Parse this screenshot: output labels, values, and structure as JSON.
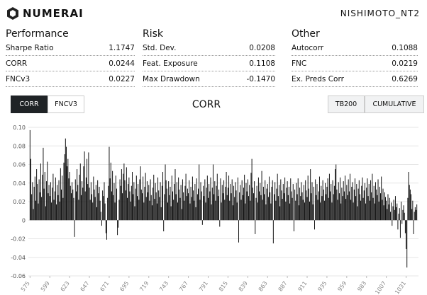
{
  "header": {
    "brand": "NUMERAI",
    "model": "NISHIMOTO_NT2"
  },
  "sections": [
    {
      "title": "Performance",
      "rows": [
        [
          "Sharpe Ratio",
          "1.1747"
        ],
        [
          "CORR",
          "0.0244"
        ],
        [
          "FNCv3",
          "0.0227"
        ]
      ]
    },
    {
      "title": "Risk",
      "rows": [
        [
          "Std. Dev.",
          "0.0208"
        ],
        [
          "Feat. Exposure",
          "0.1108"
        ],
        [
          "Max Drawdown",
          "-0.1470"
        ]
      ]
    },
    {
      "title": "Other",
      "rows": [
        [
          "Autocorr",
          "0.1088"
        ],
        [
          "FNC",
          "0.0219"
        ],
        [
          "Ex. Preds Corr",
          "0.6269"
        ]
      ]
    }
  ],
  "controls": {
    "left": [
      "CORR",
      "FNCV3"
    ],
    "right": [
      "TB200",
      "CUMULATIVE"
    ]
  },
  "chart_data": {
    "type": "bar",
    "title": "CORR",
    "color": "#111111",
    "grid": true,
    "xlim": [
      573,
      1046
    ],
    "ylim": [
      -0.06,
      0.1
    ],
    "yticks": [
      -0.06,
      -0.04,
      -0.02,
      0,
      0.02,
      0.04,
      0.06,
      0.08,
      {
        "value": 0.1,
        "label": "0.10"
      }
    ],
    "xticks": [
      575,
      599,
      623,
      647,
      671,
      695,
      719,
      743,
      767,
      791,
      815,
      839,
      863,
      887,
      911,
      935,
      959,
      983,
      1007,
      1031
    ],
    "x": [
      575,
      576,
      577,
      578,
      579,
      580,
      581,
      582,
      583,
      584,
      585,
      586,
      587,
      588,
      589,
      590,
      591,
      592,
      593,
      594,
      595,
      596,
      597,
      598,
      599,
      600,
      601,
      602,
      603,
      604,
      605,
      606,
      607,
      608,
      609,
      610,
      611,
      612,
      613,
      614,
      615,
      616,
      617,
      618,
      619,
      620,
      621,
      622,
      623,
      624,
      625,
      626,
      627,
      628,
      629,
      630,
      631,
      632,
      633,
      634,
      635,
      636,
      637,
      638,
      639,
      640,
      641,
      642,
      643,
      644,
      645,
      646,
      647,
      648,
      649,
      650,
      651,
      652,
      653,
      654,
      655,
      656,
      657,
      658,
      659,
      660,
      661,
      662,
      663,
      664,
      665,
      666,
      667,
      668,
      669,
      670,
      671,
      672,
      673,
      674,
      675,
      676,
      677,
      678,
      679,
      680,
      681,
      682,
      683,
      684,
      685,
      686,
      687,
      688,
      689,
      690,
      691,
      692,
      693,
      694,
      695,
      696,
      697,
      698,
      699,
      700,
      701,
      702,
      703,
      704,
      705,
      706,
      707,
      708,
      709,
      710,
      711,
      712,
      713,
      714,
      715,
      716,
      717,
      718,
      719,
      720,
      721,
      722,
      723,
      724,
      725,
      726,
      727,
      728,
      729,
      730,
      731,
      732,
      733,
      734,
      735,
      736,
      737,
      738,
      739,
      740,
      741,
      742,
      743,
      744,
      745,
      746,
      747,
      748,
      749,
      750,
      751,
      752,
      753,
      754,
      755,
      756,
      757,
      758,
      759,
      760,
      761,
      762,
      763,
      764,
      765,
      766,
      767,
      768,
      769,
      770,
      771,
      772,
      773,
      774,
      775,
      776,
      777,
      778,
      779,
      780,
      781,
      782,
      783,
      784,
      785,
      786,
      787,
      788,
      789,
      790,
      791,
      792,
      793,
      794,
      795,
      796,
      797,
      798,
      799,
      800,
      801,
      802,
      803,
      804,
      805,
      806,
      807,
      808,
      809,
      810,
      811,
      812,
      813,
      814,
      815,
      816,
      817,
      818,
      819,
      820,
      821,
      822,
      823,
      824,
      825,
      826,
      827,
      828,
      829,
      830,
      831,
      832,
      833,
      834,
      835,
      836,
      837,
      838,
      839,
      840,
      841,
      842,
      843,
      844,
      845,
      846,
      847,
      848,
      849,
      850,
      851,
      852,
      853,
      854,
      855,
      856,
      857,
      858,
      859,
      860,
      861,
      862,
      863,
      864,
      865,
      866,
      867,
      868,
      869,
      870,
      871,
      872,
      873,
      874,
      875,
      876,
      877,
      878,
      879,
      880,
      881,
      882,
      883,
      884,
      885,
      886,
      887,
      888,
      889,
      890,
      891,
      892,
      893,
      894,
      895,
      896,
      897,
      898,
      899,
      900,
      901,
      902,
      903,
      904,
      905,
      906,
      907,
      908,
      909,
      910,
      911,
      912,
      913,
      914,
      915,
      916,
      917,
      918,
      919,
      920,
      921,
      922,
      923,
      924,
      925,
      926,
      927,
      928,
      929,
      930,
      931,
      932,
      933,
      934,
      935,
      936,
      937,
      938,
      939,
      940,
      941,
      942,
      943,
      944,
      945,
      946,
      947,
      948,
      949,
      950,
      951,
      952,
      953,
      954,
      955,
      956,
      957,
      958,
      959,
      960,
      961,
      962,
      963,
      964,
      965,
      966,
      967,
      968,
      969,
      970,
      971,
      972,
      973,
      974,
      975,
      976,
      977,
      978,
      979,
      980,
      981,
      982,
      983,
      984,
      985,
      986,
      987,
      988,
      989,
      990,
      991,
      992,
      993,
      994,
      995,
      996,
      997,
      998,
      999,
      1000,
      1001,
      1002,
      1003,
      1004,
      1005,
      1006,
      1007,
      1008,
      1009,
      1010,
      1011,
      1012,
      1013,
      1014,
      1015,
      1016,
      1017,
      1018,
      1019,
      1020,
      1021,
      1022,
      1023,
      1024,
      1025,
      1026,
      1027,
      1028,
      1029,
      1030,
      1031,
      1032,
      1033,
      1034,
      1035,
      1036,
      1037,
      1038,
      1039,
      1040,
      1041,
      1042,
      1043,
      1044
    ],
    "values": [
      0.097,
      0.066,
      0.028,
      0.041,
      0.012,
      0.036,
      0.047,
      0.021,
      0.055,
      0.039,
      0.018,
      0.044,
      0.03,
      0.061,
      0.025,
      0.049,
      0.078,
      0.034,
      0.052,
      0.015,
      0.042,
      0.063,
      0.029,
      0.038,
      0.026,
      0.041,
      0.019,
      0.035,
      0.05,
      0.022,
      0.031,
      0.046,
      0.017,
      0.038,
      0.027,
      0.043,
      0.02,
      0.056,
      0.033,
      0.048,
      0.024,
      0.062,
      0.071,
      0.088,
      0.079,
      0.058,
      0.066,
      0.045,
      0.052,
      0.037,
      0.029,
      0.041,
      0.033,
      0.024,
      -0.018,
      0.044,
      0.031,
      0.055,
      0.038,
      0.022,
      0.049,
      0.061,
      0.027,
      0.042,
      0.035,
      0.058,
      0.074,
      0.031,
      0.046,
      0.066,
      0.039,
      0.073,
      0.035,
      0.022,
      0.041,
      0.028,
      0.019,
      0.047,
      0.033,
      0.025,
      0.038,
      0.014,
      0.043,
      0.029,
      0.036,
      0.021,
      0.009,
      -0.006,
      0.032,
      0.026,
      0.041,
      0.018,
      -0.014,
      -0.021,
      0.024,
      0.037,
      0.079,
      0.045,
      0.062,
      0.031,
      0.053,
      0.027,
      0.04,
      0.019,
      0.048,
      0.034,
      -0.016,
      -0.008,
      0.022,
      0.044,
      0.037,
      0.055,
      0.029,
      0.05,
      0.061,
      0.043,
      0.032,
      0.057,
      0.024,
      0.039,
      0.046,
      0.031,
      0.02,
      0.037,
      0.052,
      0.028,
      0.041,
      0.015,
      0.034,
      0.048,
      0.026,
      0.039,
      0.022,
      0.044,
      0.058,
      0.033,
      0.029,
      0.047,
      0.019,
      0.036,
      0.051,
      0.025,
      0.042,
      0.03,
      0.038,
      0.021,
      0.044,
      0.027,
      0.016,
      0.035,
      0.049,
      0.023,
      0.04,
      0.03,
      0.018,
      0.046,
      0.032,
      0.025,
      0.041,
      0.014,
      0.037,
      0.052,
      -0.012,
      0.028,
      0.06,
      0.043,
      0.034,
      0.019,
      0.042,
      0.027,
      0.036,
      0.015,
      0.048,
      0.031,
      0.022,
      0.039,
      0.055,
      0.028,
      0.041,
      0.019,
      0.046,
      0.033,
      0.024,
      0.038,
      0.012,
      0.044,
      0.03,
      0.021,
      0.037,
      0.05,
      0.026,
      0.034,
      0.029,
      0.043,
      0.018,
      0.036,
      0.025,
      0.047,
      0.032,
      0.021,
      0.039,
      0.014,
      0.045,
      0.028,
      0.034,
      0.06,
      0.022,
      0.041,
      0.031,
      -0.005,
      0.037,
      0.026,
      0.044,
      0.019,
      0.035,
      0.048,
      0.024,
      0.039,
      0.031,
      0.046,
      0.017,
      0.035,
      0.06,
      0.028,
      0.042,
      0.021,
      0.037,
      0.05,
      0.026,
      0.033,
      -0.007,
      0.045,
      0.019,
      0.038,
      0.029,
      0.043,
      0.022,
      0.036,
      0.052,
      0.027,
      0.035,
      0.048,
      0.021,
      0.039,
      0.029,
      0.044,
      0.016,
      0.037,
      0.025,
      0.041,
      0.032,
      0.019,
      0.046,
      -0.024,
      0.03,
      0.038,
      0.022,
      0.043,
      0.027,
      0.035,
      0.049,
      0.018,
      0.04,
      0.031,
      0.044,
      0.026,
      0.038,
      0.021,
      0.051,
      0.066,
      0.035,
      0.029,
      0.042,
      -0.015,
      0.024,
      0.037,
      0.019,
      0.046,
      0.031,
      0.04,
      0.027,
      0.053,
      0.022,
      0.036,
      0.028,
      0.043,
      0.017,
      0.034,
      0.039,
      0.025,
      0.047,
      0.03,
      0.018,
      0.036,
      0.043,
      -0.025,
      0.028,
      0.041,
      0.021,
      0.034,
      0.05,
      0.026,
      0.038,
      0.015,
      0.044,
      0.032,
      0.023,
      0.039,
      0.029,
      0.046,
      0.02,
      0.035,
      0.042,
      0.027,
      0.036,
      0.018,
      0.045,
      0.031,
      0.024,
      0.039,
      -0.012,
      0.033,
      0.021,
      0.04,
      0.028,
      0.045,
      0.016,
      0.035,
      0.026,
      0.041,
      0.03,
      0.022,
      0.038,
      0.019,
      0.043,
      0.032,
      0.025,
      0.048,
      0.034,
      0.02,
      0.055,
      0.029,
      0.041,
      0.017,
      0.036,
      -0.01,
      0.044,
      0.027,
      0.039,
      0.022,
      0.031,
      0.047,
      0.019,
      0.037,
      0.026,
      0.043,
      0.033,
      0.021,
      0.04,
      0.028,
      0.036,
      0.045,
      0.024,
      0.05,
      0.031,
      0.039,
      0.019,
      0.043,
      0.028,
      0.037,
      0.055,
      0.06,
      0.033,
      0.022,
      0.041,
      0.029,
      0.046,
      0.018,
      0.035,
      0.026,
      0.042,
      0.031,
      0.048,
      0.023,
      0.038,
      0.027,
      0.044,
      0.031,
      0.05,
      0.022,
      0.036,
      0.041,
      0.019,
      0.033,
      0.045,
      0.026,
      0.039,
      0.015,
      0.034,
      0.043,
      0.028,
      0.021,
      0.037,
      0.046,
      0.024,
      0.032,
      0.04,
      0.018,
      0.035,
      0.045,
      0.026,
      0.039,
      0.021,
      0.043,
      0.03,
      0.05,
      0.024,
      0.037,
      0.018,
      0.041,
      0.033,
      0.027,
      0.044,
      0.02,
      0.036,
      0.029,
      0.047,
      0.022,
      0.034,
      0.016,
      0.03,
      0.025,
      0.021,
      0.012,
      0.028,
      0.017,
      0.024,
      0.009,
      0.019,
      -0.006,
      0.015,
      0.022,
      0.011,
      0.026,
      0.014,
      0.018,
      -0.01,
      0.007,
      0.013,
      -0.019,
      0.02,
      -0.004,
      0.011,
      0.016,
      0.008,
      -0.014,
      -0.031,
      -0.051,
      0.024,
      0.052,
      0.038,
      0.033,
      0.028,
      0.012,
      0.021,
      -0.015,
      0.009,
      0.014,
      0.011,
      0.017
    ]
  }
}
